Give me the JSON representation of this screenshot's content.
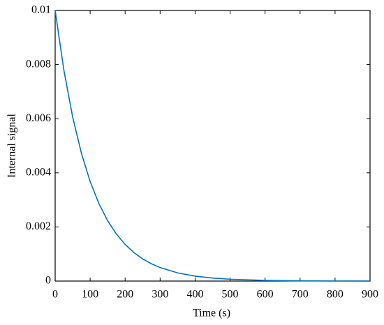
{
  "chart_data": {
    "type": "line",
    "xlabel": "Time (s)",
    "ylabel": "Internal signal",
    "x": [
      0,
      25,
      50,
      75,
      100,
      125,
      150,
      175,
      200,
      225,
      250,
      275,
      300,
      350,
      400,
      450,
      500,
      600,
      700,
      800,
      900
    ],
    "series": [
      {
        "name": "Internal signal",
        "color": "#0072bd",
        "values": [
          0.01,
          0.007788,
          0.006065,
          0.004724,
          0.003679,
          0.002865,
          0.002231,
          0.001738,
          0.001353,
          0.001054,
          0.000821,
          0.000639,
          0.000498,
          0.000302,
          0.000183,
          0.000111,
          6.74e-05,
          2.48e-05,
          9.1e-06,
          3.4e-06,
          1.2e-06
        ]
      }
    ],
    "xlim": [
      0,
      900
    ],
    "xticks": [
      0,
      100,
      200,
      300,
      400,
      500,
      600,
      700,
      800,
      900
    ],
    "ylim": [
      0,
      0.01
    ],
    "yticks": [
      0,
      0.002,
      0.004,
      0.006,
      0.008,
      0.01
    ]
  }
}
